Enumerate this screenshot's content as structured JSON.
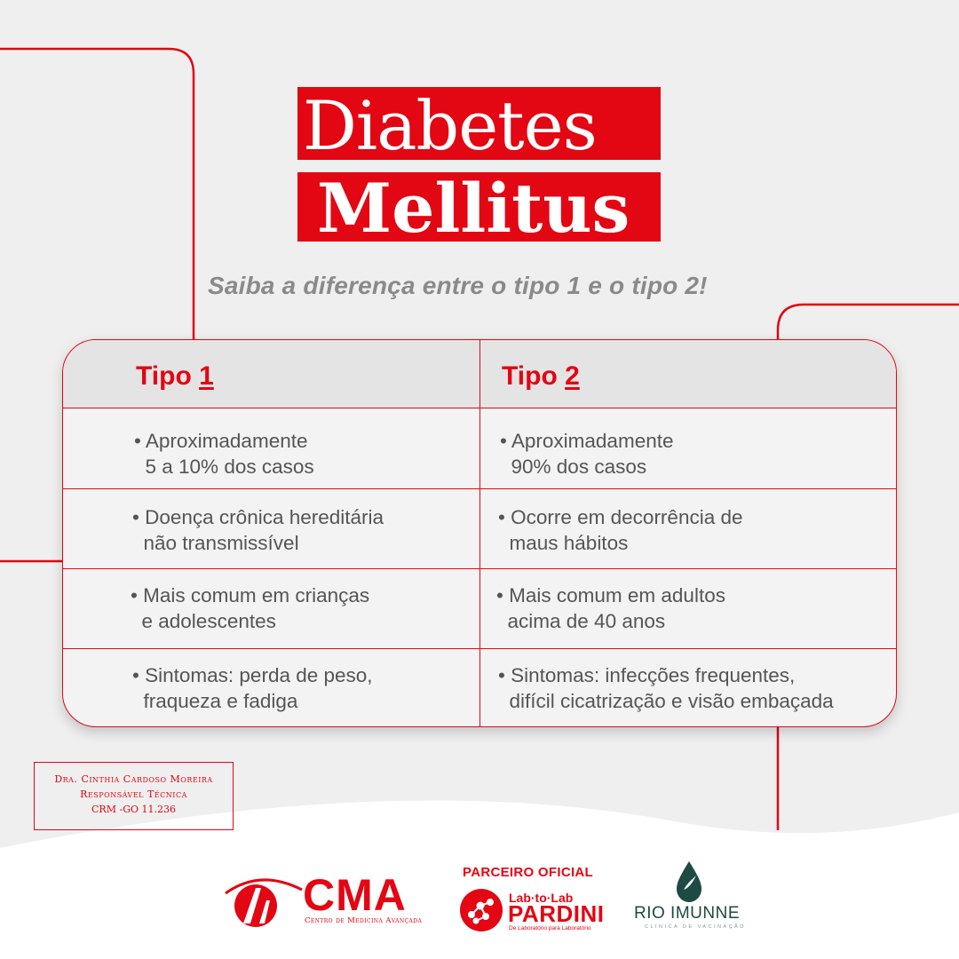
{
  "title": {
    "line1": "Diabetes",
    "line2": "Mellitus",
    "subtitle": "Saiba a diferença entre o tipo 1 e o tipo 2!"
  },
  "table": {
    "headers": [
      {
        "prefix": "Tipo ",
        "number": "1"
      },
      {
        "prefix": "Tipo ",
        "number": "2"
      }
    ],
    "rows": [
      {
        "tipo1": "• Aproximadamente\n  5 a 10% dos casos",
        "tipo2": "• Aproximadamente\n  90% dos casos"
      },
      {
        "tipo1": "• Doença crônica hereditária\n  não transmissível",
        "tipo2": "• Ocorre em decorrência de\n  maus hábitos"
      },
      {
        "tipo1": "• Mais comum em crianças\n  e adolescentes",
        "tipo2": "• Mais comum em adultos\n  acima de 40 anos"
      },
      {
        "tipo1": "• Sintomas: perda de peso,\n  fraqueza e fadiga",
        "tipo2": "• Sintomas: infecções frequentes,\n  difícil cicatrização e visão embaçada"
      }
    ]
  },
  "credits": {
    "name": "Dra. Cinthia Cardoso Moreira",
    "role": "Responsável Técnica",
    "crm": "CRM -GO 11.236"
  },
  "logos": {
    "cma": {
      "name": "CMA",
      "subtitle": "Centro de Medicina Avançada"
    },
    "pardini": {
      "label": "PARCEIRO OFICIAL",
      "top": "Lab·to·Lab",
      "name": "PARDINI",
      "subtitle": "De Laboratório para Laboratório"
    },
    "rio": {
      "name": "RIO IMUNNE",
      "subtitle": "CLÍNICA DE VACINAÇÃO"
    }
  },
  "colors": {
    "accent": "#e30613",
    "text": "#555555",
    "background": "#efefef",
    "rio_green": "#1d4a43"
  }
}
